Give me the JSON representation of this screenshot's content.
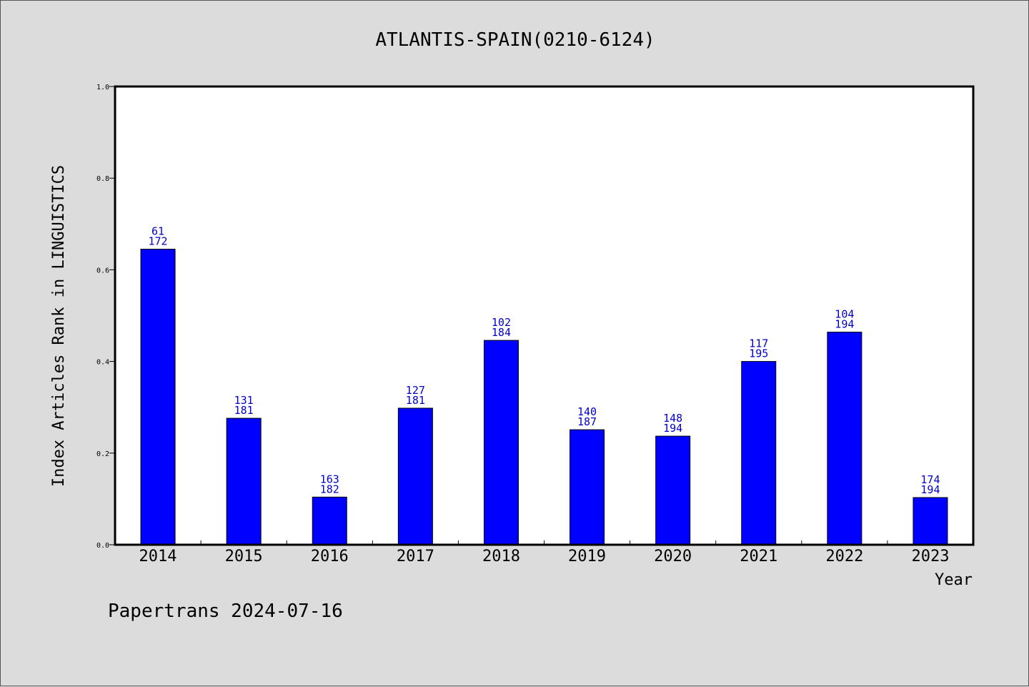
{
  "chart_data": {
    "type": "bar",
    "title": "ATLANTIS-SPAIN(0210-6124)",
    "xlabel": "Year",
    "ylabel": "Index Articles Rank in LINGUISTICS",
    "ylim": [
      0,
      1.0
    ],
    "yticks": [
      "0.0",
      "0.2",
      "0.4",
      "0.6",
      "0.8",
      "1.0"
    ],
    "grid": false,
    "categories": [
      "2014",
      "2015",
      "2016",
      "2017",
      "2018",
      "2019",
      "2020",
      "2021",
      "2022",
      "2023"
    ],
    "values": [
      0.645,
      0.276,
      0.104,
      0.298,
      0.446,
      0.251,
      0.237,
      0.4,
      0.464,
      0.103
    ],
    "rank": [
      "61",
      "131",
      "163",
      "127",
      "102",
      "140",
      "148",
      "117",
      "104",
      "174"
    ],
    "total": [
      "172",
      "181",
      "182",
      "181",
      "184",
      "187",
      "194",
      "195",
      "194",
      "194"
    ],
    "bar_color": "#0000ff",
    "label_color": "#0000cc"
  },
  "footer": "Papertrans 2024-07-16"
}
